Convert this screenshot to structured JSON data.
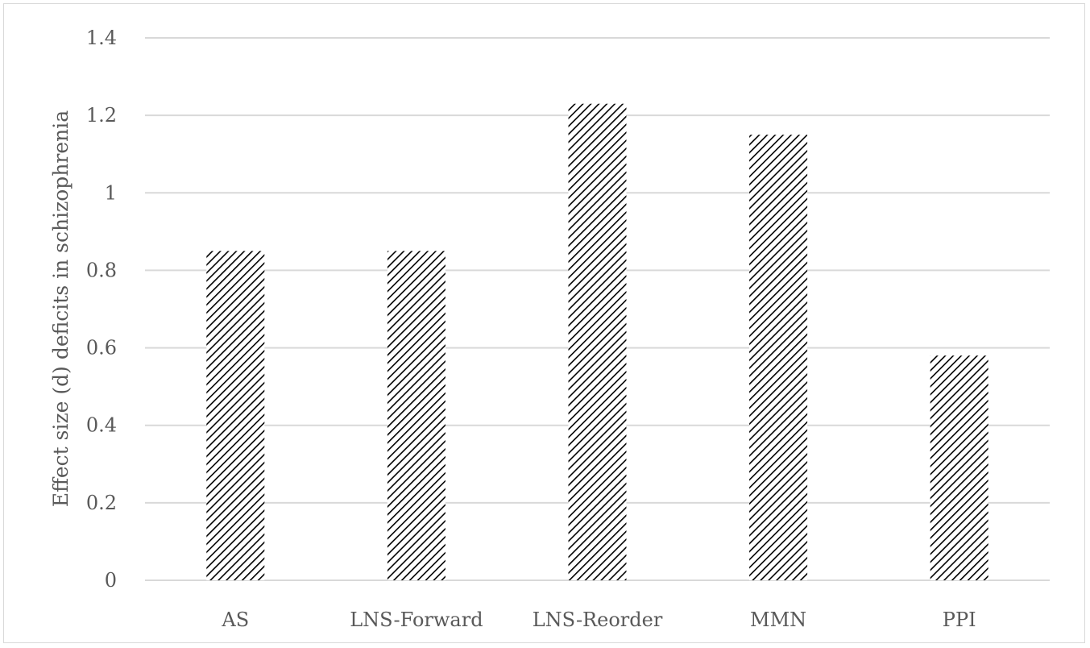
{
  "chart_data": {
    "type": "bar",
    "categories": [
      "AS",
      "LNS-Forward",
      "LNS-Reorder",
      "MMN",
      "PPI"
    ],
    "values": [
      0.85,
      0.85,
      1.23,
      1.15,
      0.58
    ],
    "ylabel": "Effect size (d) deficits in schizophrenia",
    "xlabel": "",
    "ylim": [
      0,
      1.4
    ],
    "yticks": [
      "0",
      "0.2",
      "0.4",
      "0.6",
      "0.8",
      "1",
      "1.2",
      "1.4"
    ],
    "grid": true,
    "legend": "none",
    "bar_pattern": "diagonal-hatch",
    "colors": {
      "bar_hatch": "#000000",
      "gridline": "#d9d9d9",
      "text": "#595959",
      "frame": "#d9d9d9"
    }
  }
}
